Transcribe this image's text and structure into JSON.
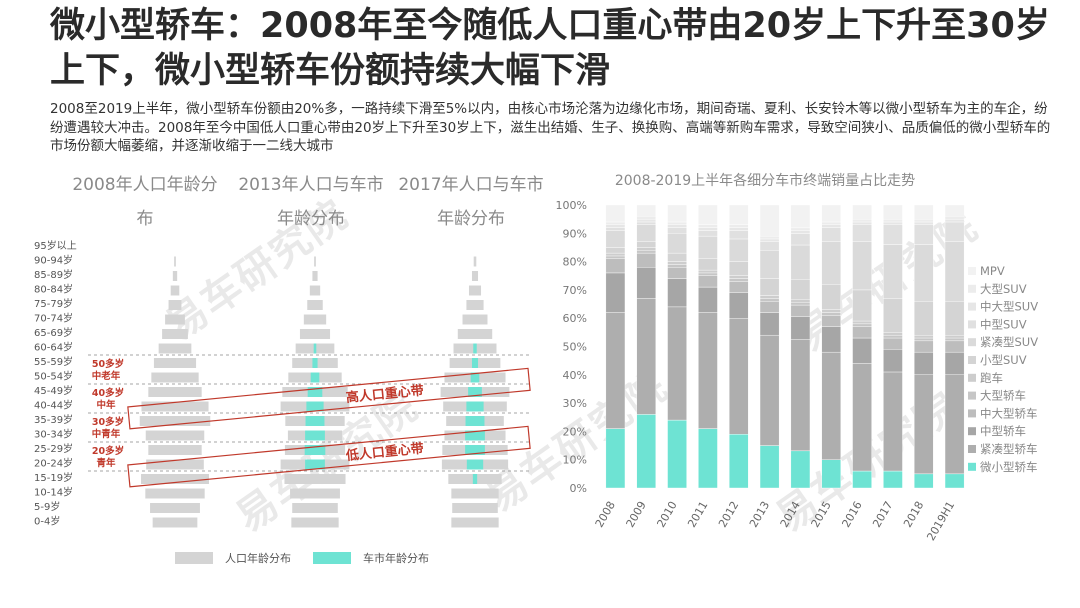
{
  "title": "微小型轿车：2008年至今随低人口重心带由20岁上下升至30岁上下，微小型轿车份额持续大幅下滑",
  "intro": "2008至2019上半年，微小型轿车份额由20%多，一路持续下滑至5%以内，由核心市场沦落为边缘化市场，期间奇瑞、夏利、长安铃木等以微小型轿车为主的车企，纷纷遭遇较大冲击。2008年至今中国低人口重心带由20岁上下升至30岁上下，滋生出结婚、生子、换换购、高端等新购车需求，导致空间狭小、品质偏低的微小型轿车的市场份额大幅萎缩，并逐渐收缩于一二线大城市",
  "watermark": "易车研究院",
  "colors": {
    "population": "#d4d4d4",
    "carmarket": "#6ee3d3",
    "band": "#c0392b",
    "gridline": "#888888"
  },
  "pyramids": {
    "titles": [
      "2008年人口年龄分布",
      "2013年人口与车市年龄分布",
      "2017年人口与车市年龄分布"
    ],
    "age_groups": [
      "95岁以上",
      "90-94岁",
      "85-89岁",
      "80-84岁",
      "75-79岁",
      "70-74岁",
      "65-69岁",
      "60-64岁",
      "55-59岁",
      "50-54岁",
      "45-49岁",
      "40-44岁",
      "35-39岁",
      "30-34岁",
      "25-29岁",
      "20-24岁",
      "15-19岁",
      "10-14岁",
      "5-9岁",
      "0-4岁"
    ],
    "population_2008": [
      0,
      0.2,
      0.5,
      1.0,
      1.5,
      2.3,
      3.0,
      3.8,
      4.9,
      5.5,
      6.2,
      7.8,
      8.2,
      6.8,
      6.2,
      6.7,
      7.9,
      6.9,
      5.8,
      5.2
    ],
    "population_2013": [
      0,
      0.2,
      0.6,
      1.2,
      1.8,
      2.6,
      3.5,
      4.5,
      5.3,
      6.2,
      7.6,
      8.0,
      6.9,
      6.3,
      7.0,
      8.0,
      7.1,
      5.8,
      5.3,
      5.5
    ],
    "population_2017": [
      0,
      0.3,
      0.7,
      1.4,
      2.0,
      2.9,
      4.0,
      5.0,
      5.9,
      7.1,
      8.0,
      7.4,
      6.7,
      7.1,
      7.6,
      7.7,
      6.2,
      5.5,
      5.3,
      5.5
    ],
    "carmarket_2013": [
      0,
      0,
      0,
      0,
      0,
      0,
      0,
      0.3,
      0.6,
      1.0,
      1.7,
      2.0,
      2.2,
      2.3,
      2.4,
      2.3,
      0,
      0,
      0,
      0
    ],
    "carmarket_2017": [
      0,
      0,
      0,
      0,
      0,
      0,
      0,
      0.4,
      0.7,
      1.0,
      1.6,
      2.0,
      2.2,
      2.3,
      2.3,
      1.9,
      0.5,
      0,
      0,
      0
    ],
    "band_labels": [
      {
        "age": "50多岁",
        "group": "中老年"
      },
      {
        "age": "40多岁",
        "group": "中年"
      },
      {
        "age": "30多岁",
        "group": "中青年"
      },
      {
        "age": "20多岁",
        "group": "青年"
      }
    ],
    "high_band_label": "高人口重心带",
    "low_band_label": "低人口重心带",
    "legend": [
      "人口年龄分布",
      "车市年龄分布"
    ]
  },
  "chart_data": {
    "type": "bar",
    "stacked": true,
    "percent": true,
    "title": "2008-2019上半年各细分车市终端销量占比走势",
    "categories": [
      "2008",
      "2009",
      "2010",
      "2011",
      "2012",
      "2013",
      "2014",
      "2015",
      "2016",
      "2017",
      "2018",
      "2019H1"
    ],
    "ylim": [
      0,
      100
    ],
    "yticks": [
      "0%",
      "10%",
      "20%",
      "30%",
      "40%",
      "50%",
      "60%",
      "70%",
      "80%",
      "90%",
      "100%"
    ],
    "legend_position": "right",
    "series": [
      {
        "name": "微小型轿车",
        "color": "#6ee3d3",
        "values": [
          21,
          26,
          24,
          21,
          19,
          15,
          13,
          10,
          6,
          6,
          5,
          5
        ]
      },
      {
        "name": "紧凑型轿车",
        "color": "#aeaeae",
        "values": [
          41,
          41,
          40,
          41,
          41,
          39,
          39,
          38,
          38,
          35,
          35,
          35
        ]
      },
      {
        "name": "中型轿车",
        "color": "#a6a6a6",
        "values": [
          14,
          11,
          10,
          9,
          9,
          8,
          8,
          9,
          9,
          8,
          8,
          8
        ]
      },
      {
        "name": "中大型轿车",
        "color": "#bdbdbd",
        "values": [
          5,
          5,
          4,
          4,
          4,
          4,
          4,
          4,
          4,
          4,
          4,
          4
        ]
      },
      {
        "name": "大型轿车",
        "color": "#c6c6c6",
        "values": [
          1,
          1,
          1,
          1,
          1,
          1,
          1,
          1,
          1,
          1,
          1,
          1
        ]
      },
      {
        "name": "跑车",
        "color": "#cdcdcd",
        "values": [
          1,
          1,
          1,
          1,
          1,
          1,
          1,
          1,
          1,
          1,
          1,
          1
        ]
      },
      {
        "name": "小型SUV",
        "color": "#d4d4d4",
        "values": [
          2,
          2,
          3,
          4,
          5,
          6,
          7,
          9,
          11,
          12,
          12,
          12
        ]
      },
      {
        "name": "紧凑型SUV",
        "color": "#dadada",
        "values": [
          6,
          6,
          7,
          8,
          8,
          10,
          12,
          15,
          17,
          19,
          20,
          21
        ]
      },
      {
        "name": "中型SUV",
        "color": "#e0e0e0",
        "values": [
          1,
          1,
          2,
          2,
          3,
          3,
          4,
          5,
          6,
          7,
          7,
          7
        ]
      },
      {
        "name": "中大型SUV",
        "color": "#e6e6e6",
        "values": [
          1,
          1,
          1,
          1,
          1,
          1,
          1,
          1,
          1,
          1,
          1,
          1
        ]
      },
      {
        "name": "大型SUV",
        "color": "#ececec",
        "values": [
          1,
          1,
          1,
          1,
          1,
          1,
          1,
          1,
          1,
          1,
          1,
          1
        ]
      },
      {
        "name": "MPV",
        "color": "#f2f2f2",
        "values": [
          6,
          4,
          6,
          7,
          7,
          11,
          8,
          6,
          5,
          5,
          5,
          4
        ]
      }
    ]
  }
}
